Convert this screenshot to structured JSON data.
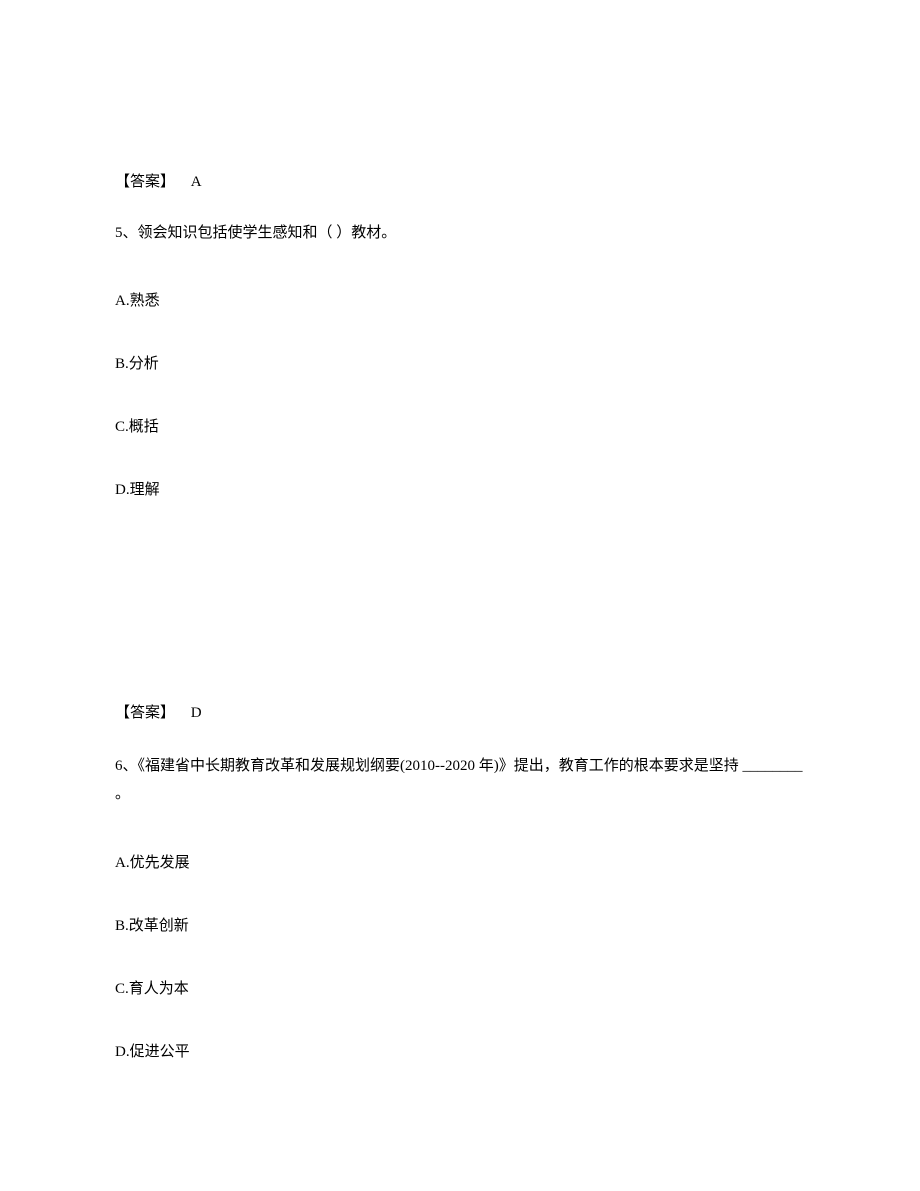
{
  "answer1": {
    "label": "【答案】",
    "value": "A"
  },
  "question5": {
    "number": "5、",
    "text": "领会知识包括使学生感知和（ ）教材。",
    "options": {
      "a": {
        "letter": "A.",
        "text": "熟悉"
      },
      "b": {
        "letter": "B.",
        "text": "分析"
      },
      "c": {
        "letter": "C.",
        "text": "概括"
      },
      "d": {
        "letter": "D.",
        "text": "理解"
      }
    }
  },
  "answer2": {
    "label": "【答案】",
    "value": "D"
  },
  "question6": {
    "number": "6、",
    "text": "《福建省中长期教育改革和发展规划纲要(2010--2020 年)》提出，教育工作的根本要求是坚持 ________ 。",
    "options": {
      "a": {
        "letter": "A.",
        "text": "优先发展"
      },
      "b": {
        "letter": "B.",
        "text": "改革创新"
      },
      "c": {
        "letter": "C.",
        "text": "育人为本"
      },
      "d": {
        "letter": "D.",
        "text": "促进公平"
      }
    }
  }
}
